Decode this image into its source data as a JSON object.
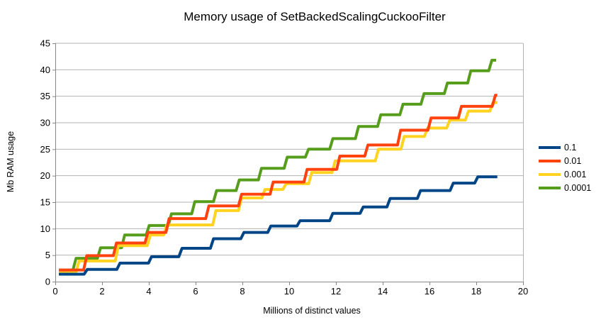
{
  "chart_data": {
    "type": "line",
    "subtype": "step",
    "title": "Memory usage of SetBackedScalingCuckooFilter",
    "xlabel": "Millions of distinct values",
    "ylabel": "Mb RAM usage",
    "xlim": [
      0,
      20
    ],
    "ylim": [
      0,
      45
    ],
    "x_ticks": [
      0,
      2,
      4,
      6,
      8,
      10,
      12,
      14,
      16,
      18,
      20
    ],
    "y_ticks": [
      0,
      5,
      10,
      15,
      20,
      25,
      30,
      35,
      40,
      45
    ],
    "grid": "horizontal",
    "legend_position": "right",
    "colors": {
      "background": "#ffffff",
      "grid": "#b3b3b3",
      "axis": "#888888",
      "text": "#000000"
    },
    "series": [
      {
        "name": "0.1",
        "color": "#004586",
        "end_x": 18.9,
        "points": [
          [
            0.15,
            1.4
          ],
          [
            1.3,
            2.3
          ],
          [
            2.7,
            3.5
          ],
          [
            4.05,
            4.7
          ],
          [
            5.35,
            6.3
          ],
          [
            6.7,
            8.1
          ],
          [
            8.0,
            9.3
          ],
          [
            9.15,
            10.5
          ],
          [
            10.4,
            11.5
          ],
          [
            11.8,
            12.9
          ],
          [
            13.1,
            14.1
          ],
          [
            14.25,
            15.7
          ],
          [
            15.55,
            17.2
          ],
          [
            16.95,
            18.6
          ],
          [
            18.0,
            19.8
          ]
        ]
      },
      {
        "name": "0.01",
        "color": "#ff420e",
        "end_x": 18.9,
        "points": [
          [
            0.15,
            2.2
          ],
          [
            1.28,
            4.9
          ],
          [
            2.55,
            7.3
          ],
          [
            3.9,
            9.3
          ],
          [
            4.8,
            11.9
          ],
          [
            6.5,
            14.3
          ],
          [
            7.9,
            16.5
          ],
          [
            9.25,
            18.8
          ],
          [
            10.7,
            21.2
          ],
          [
            12.1,
            23.7
          ],
          [
            13.3,
            25.8
          ],
          [
            14.7,
            28.6
          ],
          [
            16.0,
            30.9
          ],
          [
            17.3,
            33.1
          ],
          [
            18.75,
            35.2
          ]
        ]
      },
      {
        "name": "0.001",
        "color": "#ffd320",
        "end_x": 18.9,
        "points": [
          [
            0.15,
            1.8
          ],
          [
            0.95,
            3.9
          ],
          [
            2.63,
            6.8
          ],
          [
            4.0,
            8.8
          ],
          [
            4.7,
            10.7
          ],
          [
            6.8,
            13.4
          ],
          [
            7.9,
            15.8
          ],
          [
            8.9,
            17.4
          ],
          [
            9.8,
            18.5
          ],
          [
            10.9,
            20.6
          ],
          [
            11.9,
            22.8
          ],
          [
            13.75,
            25.0
          ],
          [
            14.85,
            27.4
          ],
          [
            15.85,
            29.0
          ],
          [
            16.8,
            30.5
          ],
          [
            17.6,
            32.2
          ],
          [
            18.65,
            33.8
          ]
        ]
      },
      {
        "name": "0.0001",
        "color": "#579d1c",
        "end_x": 18.85,
        "points": [
          [
            0.15,
            2.2
          ],
          [
            0.82,
            4.4
          ],
          [
            1.87,
            6.4
          ],
          [
            2.9,
            8.8
          ],
          [
            3.95,
            10.6
          ],
          [
            4.9,
            12.8
          ],
          [
            5.9,
            15.1
          ],
          [
            6.83,
            17.2
          ],
          [
            7.8,
            19.2
          ],
          [
            8.75,
            21.4
          ],
          [
            9.85,
            23.5
          ],
          [
            10.76,
            25.0
          ],
          [
            11.8,
            27.0
          ],
          [
            12.9,
            29.3
          ],
          [
            13.85,
            31.5
          ],
          [
            14.8,
            33.5
          ],
          [
            15.7,
            35.5
          ],
          [
            16.7,
            37.5
          ],
          [
            17.7,
            39.8
          ],
          [
            18.6,
            41.8
          ]
        ]
      }
    ],
    "draw_order": [
      3,
      2,
      1,
      0
    ]
  }
}
